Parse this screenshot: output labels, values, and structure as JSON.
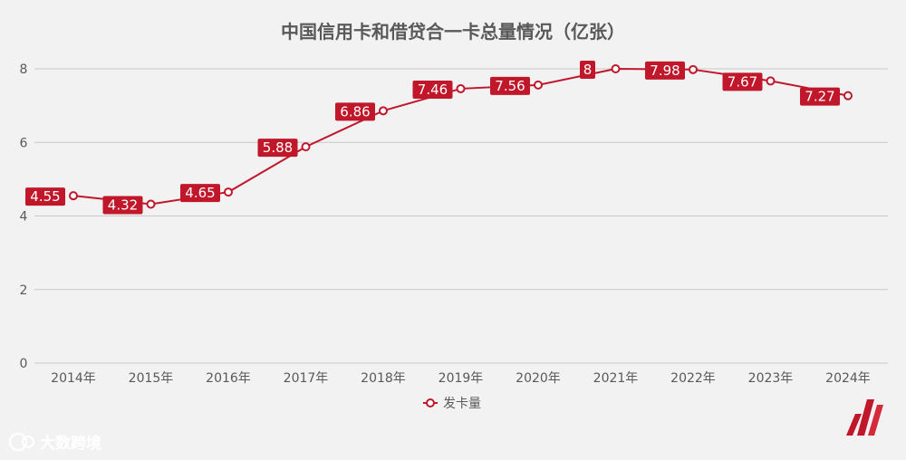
{
  "chart_data": {
    "type": "line",
    "title": "中国信用卡和借贷合一卡总量情况（亿张）",
    "categories": [
      "2014年",
      "2015年",
      "2016年",
      "2017年",
      "2018年",
      "2019年",
      "2020年",
      "2021年",
      "2022年",
      "2023年",
      "2024年"
    ],
    "series": [
      {
        "name": "发卡量",
        "values": [
          4.55,
          4.32,
          4.65,
          5.88,
          6.86,
          7.46,
          7.56,
          8,
          7.98,
          7.67,
          7.27
        ]
      }
    ],
    "data_labels": [
      "4.55",
      "4.32",
      "4.65",
      "5.88",
      "6.86",
      "7.46",
      "7.56",
      "8",
      "7.98",
      "7.67",
      "7.27"
    ],
    "ylim": [
      0,
      8
    ],
    "yticks": [
      0,
      2,
      4,
      6,
      8
    ],
    "grid": true,
    "legend_position": "bottom-center",
    "colors": {
      "line": "#c0172b",
      "label_bg": "#c0172b",
      "grid": "#c8c8c8",
      "text": "#595959",
      "background": "#f2f2f2"
    }
  },
  "watermark": {
    "text": "大数跨境"
  }
}
